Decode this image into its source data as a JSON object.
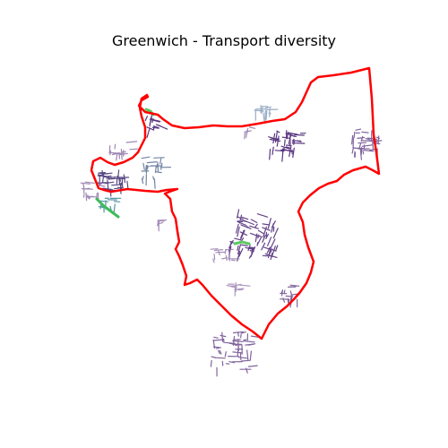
{
  "title": "Greenwich - Transport diversity",
  "colors": {
    "boundary": "#ff0000",
    "deep_purple": "#440154",
    "purple": "#482173",
    "violet": "#3b2a6e",
    "mauve": "#6a4a8c",
    "light_mauve": "#8f73a8",
    "blue_grey": "#5b6f94",
    "pale_blue": "#8fa4bf",
    "teal": "#2a788e",
    "green": "#5ec962",
    "bright_green": "#3dbb5a"
  }
}
